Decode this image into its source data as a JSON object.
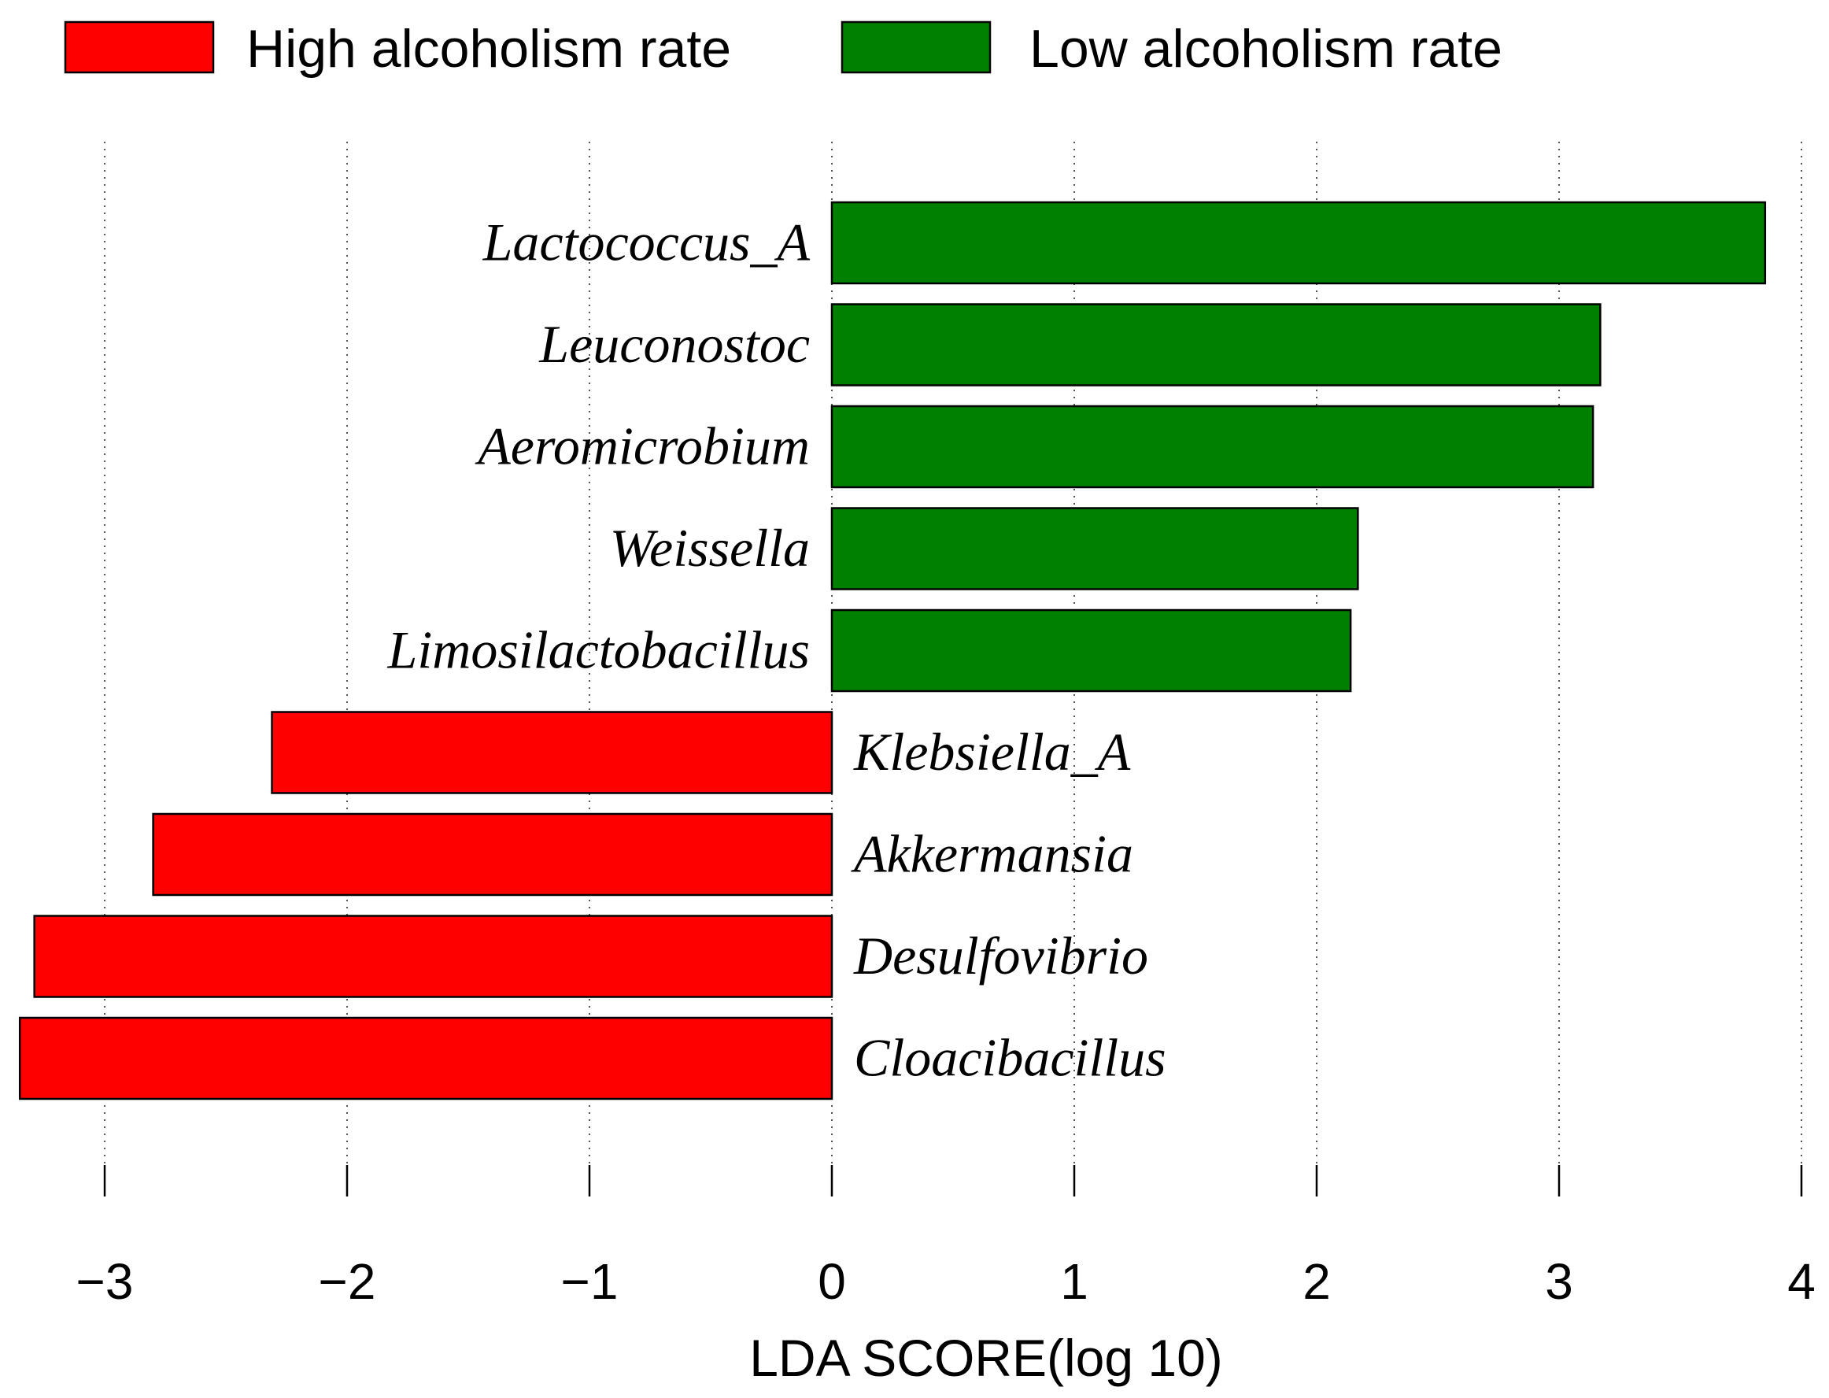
{
  "chart_data": {
    "type": "bar",
    "orientation": "horizontal",
    "title": "",
    "xlabel": "LDA SCORE(log 10)",
    "ylabel": "",
    "xlim": [
      -3.35,
      4.0
    ],
    "xticks": [
      -3,
      -2,
      -1,
      0,
      1,
      2,
      3,
      4
    ],
    "xtick_labels": [
      "−3",
      "−2",
      "−1",
      "0",
      "1",
      "2",
      "3",
      "4"
    ],
    "grid": "vertical dotted",
    "legend_position": "top",
    "legend": [
      {
        "name": "High alcoholism rate",
        "color": "#ff0000"
      },
      {
        "name": "Low alcoholism rate",
        "color": "#008000"
      }
    ],
    "bars": [
      {
        "label": "Lactococcus_A",
        "value": 3.85,
        "group": "Low alcoholism rate"
      },
      {
        "label": "Leuconostoc",
        "value": 3.17,
        "group": "Low alcoholism rate"
      },
      {
        "label": "Aeromicrobium",
        "value": 3.14,
        "group": "Low alcoholism rate"
      },
      {
        "label": "Weissella",
        "value": 2.17,
        "group": "Low alcoholism rate"
      },
      {
        "label": "Limosilactobacillus",
        "value": 2.14,
        "group": "Low alcoholism rate"
      },
      {
        "label": "Klebsiella_A",
        "value": -2.31,
        "group": "High alcoholism rate"
      },
      {
        "label": "Akkermansia",
        "value": -2.8,
        "group": "High alcoholism rate"
      },
      {
        "label": "Desulfovibrio",
        "value": -3.29,
        "group": "High alcoholism rate"
      },
      {
        "label": "Cloacibacillus",
        "value": -3.35,
        "group": "High alcoholism rate"
      }
    ]
  }
}
